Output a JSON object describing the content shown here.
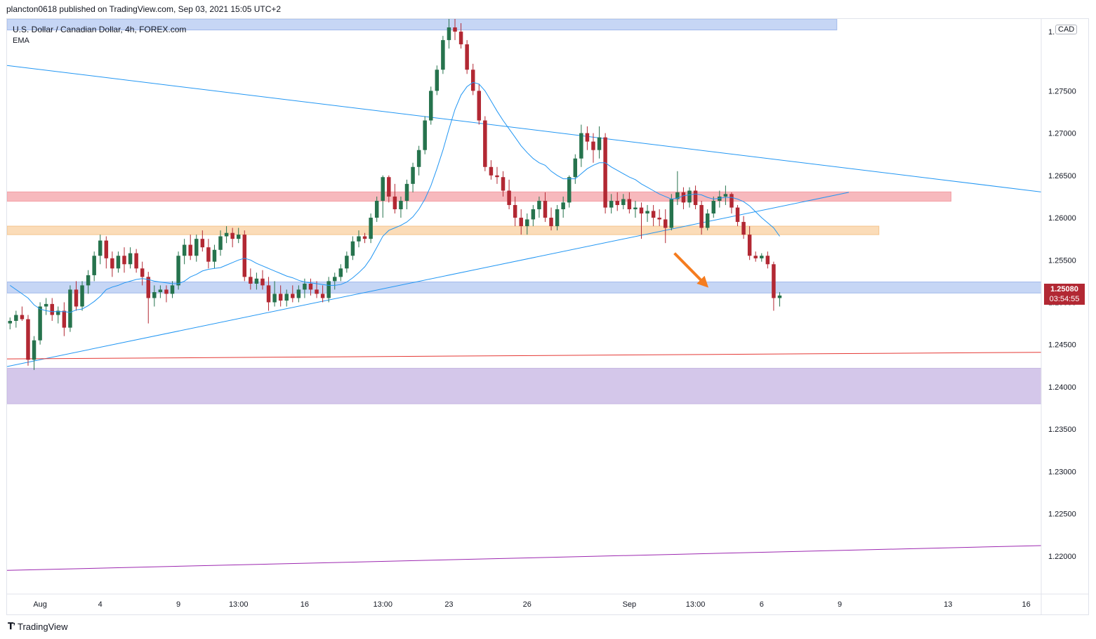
{
  "header": {
    "published_line": "plancton0618 published on TradingView.com, Sep 03, 2021 15:05 UTC+2"
  },
  "legend": {
    "symbol": "U.S. Dollar / Canadian Dollar, 4h, FOREX.com",
    "indicator": "EMA"
  },
  "price_axis": {
    "currency": "CAD",
    "last_price": "1.25080",
    "countdown": "03:54:55"
  },
  "footer": {
    "brand": "TradingView"
  },
  "colors": {
    "up_candle": "#26734d",
    "down_candle": "#b22833",
    "ema": "#2196f3",
    "blue_zone": "#c6d6f5",
    "red_zone": "#f7b9bd",
    "orange_zone": "#fbdcb8",
    "purple_zone": "#d4c7ea",
    "arrow": "#f57c1f"
  },
  "chart_data": {
    "type": "candlestick",
    "title": "U.S. Dollar / Canadian Dollar, 4h, FOREX.com",
    "ylim": [
      1.2155,
      1.2835
    ],
    "yticks": [
      "1.27500",
      "1.27000",
      "1.26500",
      "1.26000",
      "1.25500",
      "1.25000",
      "1.24500",
      "1.24000",
      "1.23500",
      "1.23000",
      "1.22500",
      "1.22000"
    ],
    "ytick_values": [
      1.275,
      1.27,
      1.265,
      1.26,
      1.255,
      1.25,
      1.245,
      1.24,
      1.235,
      1.23,
      1.225,
      1.22
    ],
    "top_tick_partial": "1.",
    "x_ticks": [
      {
        "label": "Aug",
        "bar": 5
      },
      {
        "label": "4",
        "bar": 15
      },
      {
        "label": "9",
        "bar": 28
      },
      {
        "label": "13:00",
        "bar": 38
      },
      {
        "label": "16",
        "bar": 49
      },
      {
        "label": "13:00",
        "bar": 62
      },
      {
        "label": "23",
        "bar": 73
      },
      {
        "label": "26",
        "bar": 86
      },
      {
        "label": "Sep",
        "bar": 103
      },
      {
        "label": "13:00",
        "bar": 114
      },
      {
        "label": "6",
        "bar": 125
      },
      {
        "label": "9",
        "bar": 138
      },
      {
        "label": "13",
        "bar": 156
      },
      {
        "label": "16",
        "bar": 169
      }
    ],
    "bar_count_visible": 172,
    "candles_ohlc": [
      [
        1.2475,
        1.2482,
        1.2468,
        1.2478
      ],
      [
        1.2478,
        1.249,
        1.247,
        1.2485
      ],
      [
        1.2485,
        1.2495,
        1.2478,
        1.248
      ],
      [
        1.248,
        1.2485,
        1.2425,
        1.2432
      ],
      [
        1.2432,
        1.246,
        1.242,
        1.2455
      ],
      [
        1.2455,
        1.25,
        1.245,
        1.2495
      ],
      [
        1.2495,
        1.2505,
        1.2485,
        1.2498
      ],
      [
        1.2498,
        1.2505,
        1.2478,
        1.2485
      ],
      [
        1.2485,
        1.2495,
        1.2475,
        1.249
      ],
      [
        1.249,
        1.25,
        1.246,
        1.247
      ],
      [
        1.247,
        1.252,
        1.2465,
        1.2515
      ],
      [
        1.2515,
        1.2525,
        1.249,
        1.2495
      ],
      [
        1.2495,
        1.2525,
        1.249,
        1.252
      ],
      [
        1.252,
        1.2538,
        1.251,
        1.2532
      ],
      [
        1.2532,
        1.256,
        1.2525,
        1.2555
      ],
      [
        1.2555,
        1.258,
        1.2545,
        1.2573
      ],
      [
        1.2573,
        1.2578,
        1.254,
        1.2552
      ],
      [
        1.2552,
        1.256,
        1.253,
        1.254
      ],
      [
        1.254,
        1.256,
        1.2535,
        1.2555
      ],
      [
        1.2555,
        1.2565,
        1.2535,
        1.2545
      ],
      [
        1.2545,
        1.2565,
        1.254,
        1.2558
      ],
      [
        1.2558,
        1.2563,
        1.2535,
        1.254
      ],
      [
        1.254,
        1.2548,
        1.252,
        1.253
      ],
      [
        1.253,
        1.2536,
        1.2475,
        1.2505
      ],
      [
        1.2505,
        1.252,
        1.2495,
        1.2512
      ],
      [
        1.2512,
        1.252,
        1.2505,
        1.2515
      ],
      [
        1.2515,
        1.252,
        1.25,
        1.251
      ],
      [
        1.251,
        1.2525,
        1.2505,
        1.252
      ],
      [
        1.252,
        1.256,
        1.2515,
        1.2555
      ],
      [
        1.2555,
        1.2575,
        1.2545,
        1.2568
      ],
      [
        1.2568,
        1.258,
        1.255,
        1.2555
      ],
      [
        1.2555,
        1.258,
        1.2548,
        1.2575
      ],
      [
        1.2575,
        1.2585,
        1.256,
        1.2565
      ],
      [
        1.2565,
        1.2575,
        1.254,
        1.2548
      ],
      [
        1.2548,
        1.2568,
        1.254,
        1.2562
      ],
      [
        1.2562,
        1.2585,
        1.2555,
        1.2578
      ],
      [
        1.2578,
        1.259,
        1.257,
        1.2582
      ],
      [
        1.2582,
        1.2588,
        1.2565,
        1.2575
      ],
      [
        1.2575,
        1.2588,
        1.257,
        1.258
      ],
      [
        1.258,
        1.2585,
        1.2525,
        1.253
      ],
      [
        1.253,
        1.254,
        1.2515,
        1.2522
      ],
      [
        1.2522,
        1.2535,
        1.2515,
        1.2528
      ],
      [
        1.2528,
        1.2538,
        1.2515,
        1.252
      ],
      [
        1.252,
        1.253,
        1.249,
        1.25
      ],
      [
        1.25,
        1.2525,
        1.2495,
        1.251
      ],
      [
        1.251,
        1.252,
        1.2495,
        1.2502
      ],
      [
        1.2502,
        1.2515,
        1.2495,
        1.251
      ],
      [
        1.251,
        1.252,
        1.25,
        1.2505
      ],
      [
        1.2505,
        1.252,
        1.25,
        1.2515
      ],
      [
        1.2515,
        1.2528,
        1.2505,
        1.2522
      ],
      [
        1.2522,
        1.2528,
        1.2508,
        1.2515
      ],
      [
        1.2515,
        1.2525,
        1.2505,
        1.251
      ],
      [
        1.251,
        1.252,
        1.25,
        1.2505
      ],
      [
        1.2505,
        1.253,
        1.25,
        1.2525
      ],
      [
        1.2525,
        1.2535,
        1.2515,
        1.253
      ],
      [
        1.253,
        1.2545,
        1.2525,
        1.254
      ],
      [
        1.254,
        1.256,
        1.2535,
        1.2555
      ],
      [
        1.2555,
        1.2578,
        1.255,
        1.2572
      ],
      [
        1.2572,
        1.2585,
        1.2565,
        1.2578
      ],
      [
        1.2578,
        1.2582,
        1.257,
        1.2575
      ],
      [
        1.2575,
        1.2605,
        1.257,
        1.26
      ],
      [
        1.26,
        1.2625,
        1.2595,
        1.262
      ],
      [
        1.262,
        1.265,
        1.26,
        1.2648
      ],
      [
        1.2648,
        1.265,
        1.2618,
        1.2625
      ],
      [
        1.2625,
        1.264,
        1.2605,
        1.261
      ],
      [
        1.261,
        1.2625,
        1.26,
        1.262
      ],
      [
        1.262,
        1.2645,
        1.261,
        1.264
      ],
      [
        1.264,
        1.2665,
        1.263,
        1.266
      ],
      [
        1.266,
        1.2685,
        1.265,
        1.268
      ],
      [
        1.268,
        1.272,
        1.2675,
        1.2715
      ],
      [
        1.2715,
        1.2755,
        1.271,
        1.275
      ],
      [
        1.275,
        1.278,
        1.2745,
        1.2775
      ],
      [
        1.2775,
        1.2815,
        1.277,
        1.281
      ],
      [
        1.281,
        1.2835,
        1.28,
        1.2825
      ],
      [
        1.2825,
        1.2835,
        1.281,
        1.282
      ],
      [
        1.282,
        1.283,
        1.28,
        1.2805
      ],
      [
        1.2805,
        1.281,
        1.277,
        1.2775
      ],
      [
        1.2775,
        1.2782,
        1.2745,
        1.275
      ],
      [
        1.275,
        1.2758,
        1.271,
        1.2715
      ],
      [
        1.2715,
        1.272,
        1.2655,
        1.266
      ],
      [
        1.266,
        1.2668,
        1.2645,
        1.265
      ],
      [
        1.265,
        1.266,
        1.264,
        1.2648
      ],
      [
        1.2648,
        1.2655,
        1.2625,
        1.2632
      ],
      [
        1.2632,
        1.2645,
        1.261,
        1.2615
      ],
      [
        1.2615,
        1.2625,
        1.259,
        1.26
      ],
      [
        1.26,
        1.261,
        1.258,
        1.259
      ],
      [
        1.259,
        1.2605,
        1.258,
        1.2598
      ],
      [
        1.2598,
        1.2615,
        1.259,
        1.261
      ],
      [
        1.261,
        1.2625,
        1.26,
        1.262
      ],
      [
        1.262,
        1.263,
        1.2595,
        1.26
      ],
      [
        1.26,
        1.2612,
        1.2585,
        1.259
      ],
      [
        1.259,
        1.2615,
        1.2585,
        1.261
      ],
      [
        1.261,
        1.2625,
        1.26,
        1.2618
      ],
      [
        1.2618,
        1.265,
        1.2612,
        1.2648
      ],
      [
        1.2648,
        1.2675,
        1.264,
        1.267
      ],
      [
        1.267,
        1.271,
        1.266,
        1.27
      ],
      [
        1.27,
        1.2708,
        1.268,
        1.269
      ],
      [
        1.269,
        1.27,
        1.2665,
        1.268
      ],
      [
        1.268,
        1.2708,
        1.267,
        1.2695
      ],
      [
        1.2695,
        1.27,
        1.2605,
        1.2612
      ],
      [
        1.2612,
        1.2628,
        1.2605,
        1.262
      ],
      [
        1.262,
        1.263,
        1.2608,
        1.2615
      ],
      [
        1.2615,
        1.2628,
        1.261,
        1.2622
      ],
      [
        1.2622,
        1.263,
        1.2605,
        1.261
      ],
      [
        1.261,
        1.262,
        1.26,
        1.2612
      ],
      [
        1.2612,
        1.2618,
        1.2575,
        1.2605
      ],
      [
        1.2605,
        1.2615,
        1.2595,
        1.2608
      ],
      [
        1.2608,
        1.2615,
        1.259,
        1.26
      ],
      [
        1.26,
        1.261,
        1.259,
        1.2598
      ],
      [
        1.2598,
        1.261,
        1.257,
        1.2588
      ],
      [
        1.2588,
        1.2628,
        1.2585,
        1.2622
      ],
      [
        1.2622,
        1.2655,
        1.2615,
        1.263
      ],
      [
        1.263,
        1.2636,
        1.261,
        1.2618
      ],
      [
        1.2618,
        1.2636,
        1.2612,
        1.2632
      ],
      [
        1.2632,
        1.2638,
        1.261,
        1.2615
      ],
      [
        1.2615,
        1.262,
        1.258,
        1.2588
      ],
      [
        1.2588,
        1.261,
        1.2585,
        1.2605
      ],
      [
        1.2605,
        1.2625,
        1.26,
        1.262
      ],
      [
        1.262,
        1.2632,
        1.2612,
        1.2625
      ],
      [
        1.2625,
        1.2638,
        1.2615,
        1.2628
      ],
      [
        1.2628,
        1.263,
        1.2605,
        1.2612
      ],
      [
        1.2612,
        1.2615,
        1.259,
        1.2595
      ],
      [
        1.2595,
        1.2602,
        1.2575,
        1.258
      ],
      [
        1.258,
        1.259,
        1.255,
        1.2555
      ],
      [
        1.2555,
        1.256,
        1.2548,
        1.2552
      ],
      [
        1.2552,
        1.2558,
        1.2548,
        1.2555
      ],
      [
        1.2555,
        1.256,
        1.254,
        1.2545
      ],
      [
        1.2545,
        1.2548,
        1.249,
        1.2505
      ],
      [
        1.2505,
        1.2512,
        1.2495,
        1.2508
      ]
    ],
    "ema": {
      "name": "EMA",
      "values": [
        1.252,
        1.2515,
        1.251,
        1.2505,
        1.2497,
        1.2492,
        1.249,
        1.2489,
        1.2489,
        1.2489,
        1.2488,
        1.2491,
        1.2492,
        1.2496,
        1.2501,
        1.2507,
        1.2515,
        1.2518,
        1.252,
        1.2523,
        1.2525,
        1.2527,
        1.2528,
        1.2527,
        1.2525,
        1.2524,
        1.2523,
        1.2522,
        1.2522,
        1.2525,
        1.253,
        1.2533,
        1.2537,
        1.2539,
        1.254,
        1.2541,
        1.2544,
        1.2547,
        1.255,
        1.2552,
        1.255,
        1.2546,
        1.2543,
        1.254,
        1.2537,
        1.2534,
        1.2531,
        1.2529,
        1.2526,
        1.2524,
        1.2523,
        1.2522,
        1.2521,
        1.252,
        1.252,
        1.2521,
        1.2524,
        1.2529,
        1.2535,
        1.2542,
        1.2552,
        1.2565,
        1.2578,
        1.2585,
        1.2588,
        1.2591,
        1.2595,
        1.2601,
        1.261,
        1.2622,
        1.2638,
        1.2658,
        1.268,
        1.2705,
        1.2728,
        1.2745,
        1.2755,
        1.276,
        1.2758,
        1.275,
        1.2738,
        1.2726,
        1.2715,
        1.2705,
        1.2695,
        1.2685,
        1.2677,
        1.267,
        1.2665,
        1.2662,
        1.2655,
        1.265,
        1.2646,
        1.2646,
        1.2646,
        1.2652,
        1.2658,
        1.2662,
        1.2665,
        1.2665,
        1.266,
        1.2656,
        1.2652,
        1.2648,
        1.2645,
        1.264,
        1.2636,
        1.2632,
        1.2628,
        1.2625,
        1.2622,
        1.2623,
        1.2626,
        1.2627,
        1.2628,
        1.2627,
        1.2624,
        1.2622,
        1.2623,
        1.2624,
        1.2624,
        1.2622,
        1.2619,
        1.2614,
        1.2607,
        1.26,
        1.2594,
        1.2588,
        1.2578
      ]
    },
    "zones": [
      {
        "color": "blue",
        "y_top": 1.2835,
        "y_bottom": 1.2822,
        "x_end_bar": 138
      },
      {
        "color": "red",
        "y_top": 1.26305,
        "y_bottom": 1.26195,
        "x_end_bar": 157
      },
      {
        "color": "orange",
        "y_top": 1.259,
        "y_bottom": 1.258,
        "x_end_bar": 145
      },
      {
        "color": "blue",
        "y_top": 1.2524,
        "y_bottom": 1.2511,
        "x_end_bar": 176
      },
      {
        "color": "purple",
        "y_top": 1.2422,
        "y_bottom": 1.238,
        "x_end_bar": 176
      }
    ],
    "lines": [
      {
        "name": "descending trendline",
        "color": "blue",
        "from": [
          0,
          1.278
        ],
        "to": [
          176,
          1.2627
        ]
      },
      {
        "name": "ascending trendline",
        "color": "blue",
        "from": [
          0,
          1.2424
        ],
        "to": [
          140,
          1.263
        ]
      },
      {
        "name": "support line",
        "color": "red",
        "from": [
          0,
          1.2433
        ],
        "to": [
          176,
          1.2441
        ]
      },
      {
        "name": "lower line",
        "color": "purple",
        "from": [
          0,
          1.2183
        ],
        "to": [
          176,
          1.2213
        ]
      }
    ],
    "arrow": {
      "from": [
        111,
        1.2558
      ],
      "to": [
        116,
        1.2522
      ],
      "direction": "down"
    }
  }
}
